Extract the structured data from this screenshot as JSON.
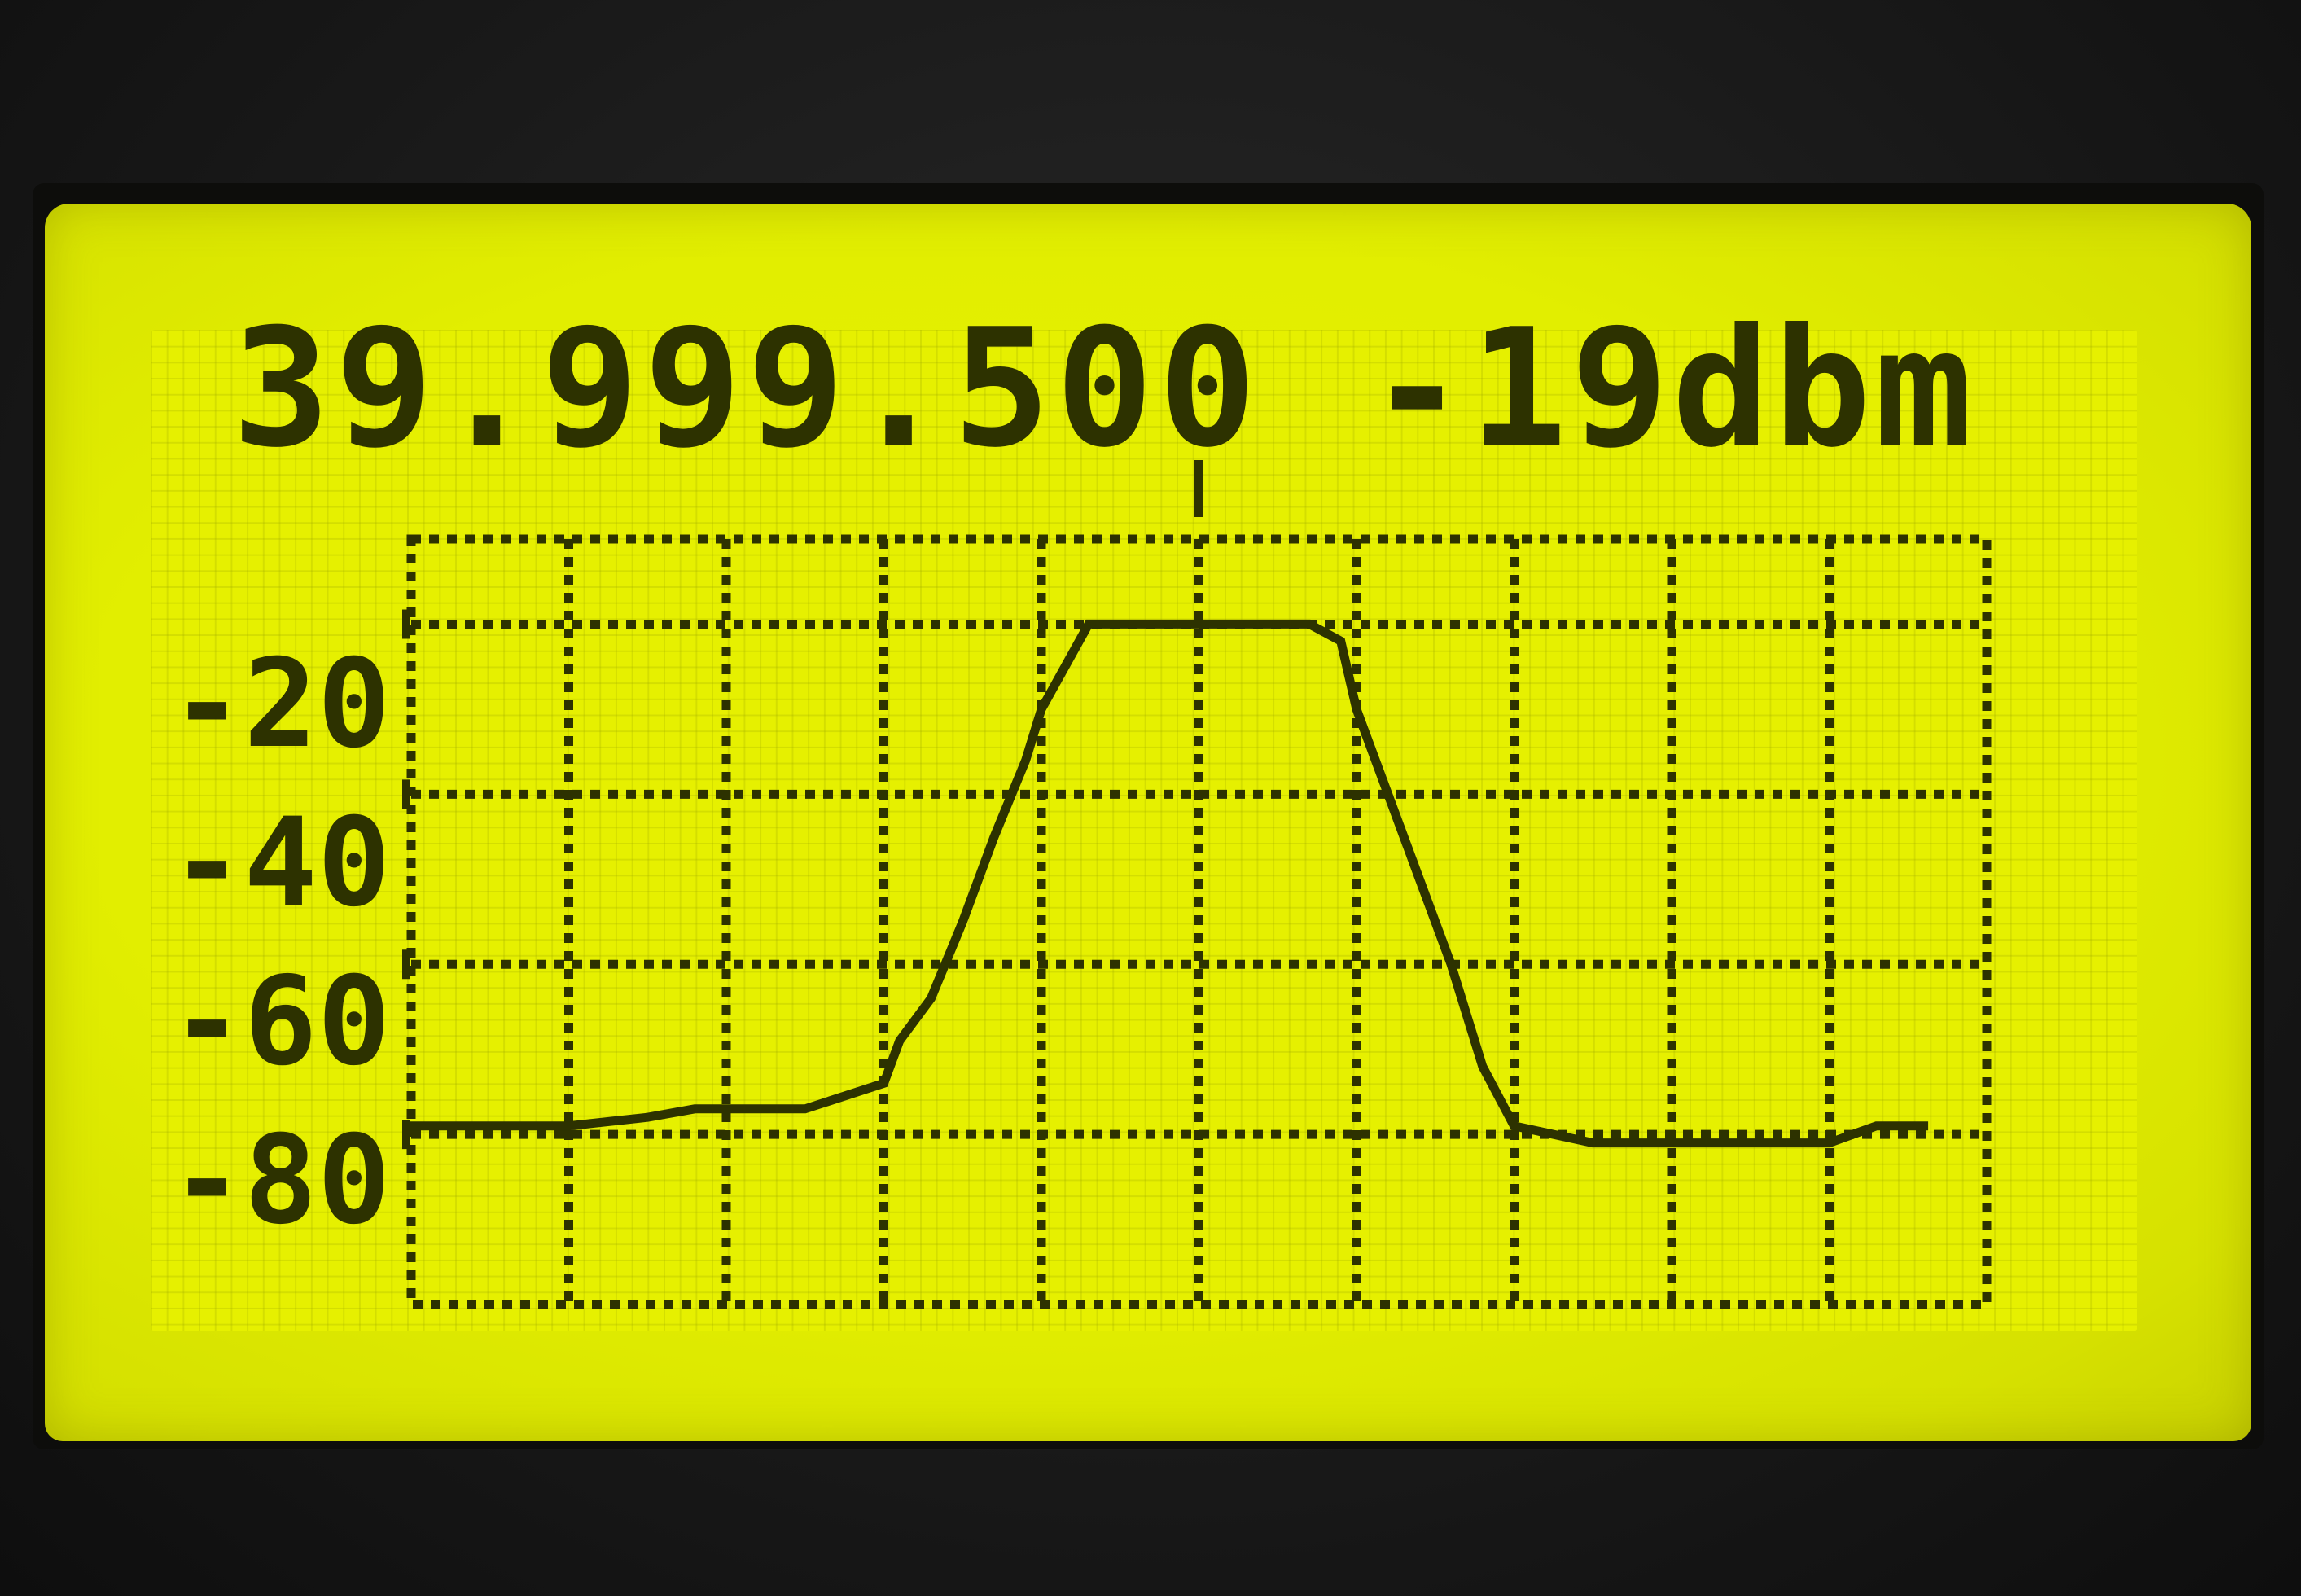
{
  "display": {
    "frequency": "39.999.500",
    "power": "-19dbm"
  },
  "colors": {
    "lcd_background": "#e4ef00",
    "lcd_ink": "#2d3200",
    "bezel": "#1a1a1a"
  },
  "chart_data": {
    "type": "line",
    "ylim": [
      -100,
      -10
    ],
    "yticks": [
      "-20",
      "-40",
      "-60",
      "-80"
    ],
    "grid": true,
    "vertical_divisions": 10,
    "center_marker": true,
    "series": [
      {
        "x": [
          0,
          0.5,
          1.0,
          1.5,
          1.8,
          2.0,
          2.5,
          3.0,
          3.1,
          3.3,
          3.5,
          3.7,
          3.9,
          4.0,
          4.3,
          4.7,
          5.0,
          5.7,
          5.9,
          6.0,
          6.2,
          6.4,
          6.6,
          6.8,
          7.0,
          7.5,
          8.0,
          8.5,
          9.0,
          9.3,
          9.6
        ],
        "y": [
          -79,
          -79,
          -79,
          -78,
          -77,
          -77,
          -77,
          -74,
          -69,
          -64,
          -55,
          -45,
          -36,
          -30,
          -20,
          -20,
          -20,
          -20,
          -22,
          -30,
          -40,
          -50,
          -60,
          -72,
          -79,
          -81,
          -81,
          -81,
          -81,
          -79,
          -79
        ]
      }
    ]
  }
}
